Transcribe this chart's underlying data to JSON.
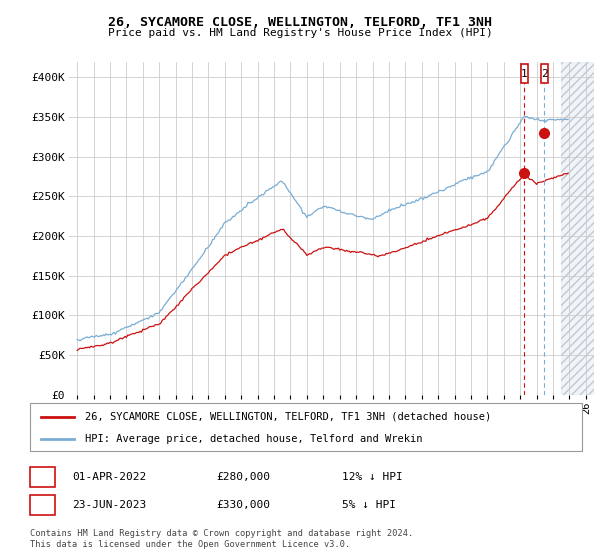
{
  "title": "26, SYCAMORE CLOSE, WELLINGTON, TELFORD, TF1 3NH",
  "subtitle": "Price paid vs. HM Land Registry's House Price Index (HPI)",
  "legend_line1": "26, SYCAMORE CLOSE, WELLINGTON, TELFORD, TF1 3NH (detached house)",
  "legend_line2": "HPI: Average price, detached house, Telford and Wrekin",
  "transaction1_date": "01-APR-2022",
  "transaction1_price": "£280,000",
  "transaction1_hpi": "12% ↓ HPI",
  "transaction2_date": "23-JUN-2023",
  "transaction2_price": "£330,000",
  "transaction2_hpi": "5% ↓ HPI",
  "footer": "Contains HM Land Registry data © Crown copyright and database right 2024.\nThis data is licensed under the Open Government Licence v3.0.",
  "hpi_color": "#7aadd4",
  "price_color": "#cc1111",
  "background_color": "#ffffff",
  "grid_color": "#cccccc",
  "ylim": [
    0,
    420000
  ],
  "yticks": [
    0,
    50000,
    100000,
    150000,
    200000,
    250000,
    300000,
    350000,
    400000
  ],
  "ytick_labels": [
    "£0",
    "£50K",
    "£100K",
    "£150K",
    "£200K",
    "£250K",
    "£300K",
    "£350K",
    "£400K"
  ],
  "xlim_start": 1994.5,
  "xlim_end": 2026.5,
  "transaction1_x": 2022.25,
  "transaction1_y": 280000,
  "transaction2_x": 2023.47,
  "transaction2_y": 330000,
  "hatch_start": 2024.5
}
